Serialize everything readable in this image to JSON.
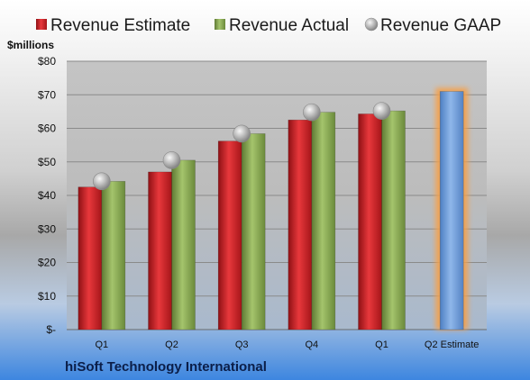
{
  "chart_data": {
    "type": "bar",
    "categories": [
      "Q1",
      "Q2",
      "Q3",
      "Q4",
      "Q1",
      "Q2 Estimate"
    ],
    "series": [
      {
        "name": "Revenue Estimate",
        "color": "#d9262c",
        "values": [
          42.5,
          47.0,
          56.2,
          62.5,
          64.3,
          null
        ]
      },
      {
        "name": "Revenue Actual",
        "color": "#8fb05a",
        "values": [
          44.2,
          50.5,
          58.4,
          64.8,
          65.2,
          null
        ]
      },
      {
        "name": "Revenue GAAP",
        "color": "#b8b8b8",
        "values": [
          44.2,
          50.5,
          58.4,
          64.8,
          65.2,
          null
        ]
      },
      {
        "name": "",
        "color": "#6f9fd8",
        "values": [
          null,
          null,
          null,
          null,
          null,
          71.0
        ]
      }
    ],
    "ylabel": "$millions",
    "ylim": [
      0,
      80
    ],
    "yticks": [
      0,
      10,
      20,
      30,
      40,
      50,
      60,
      70,
      80
    ],
    "ytick_labels": [
      "$-",
      "$10",
      "$20",
      "$30",
      "$40",
      "$50",
      "$60",
      "$70",
      "$80"
    ],
    "grid": true,
    "legend_position": "top",
    "company": "hiSoft Technology International"
  }
}
